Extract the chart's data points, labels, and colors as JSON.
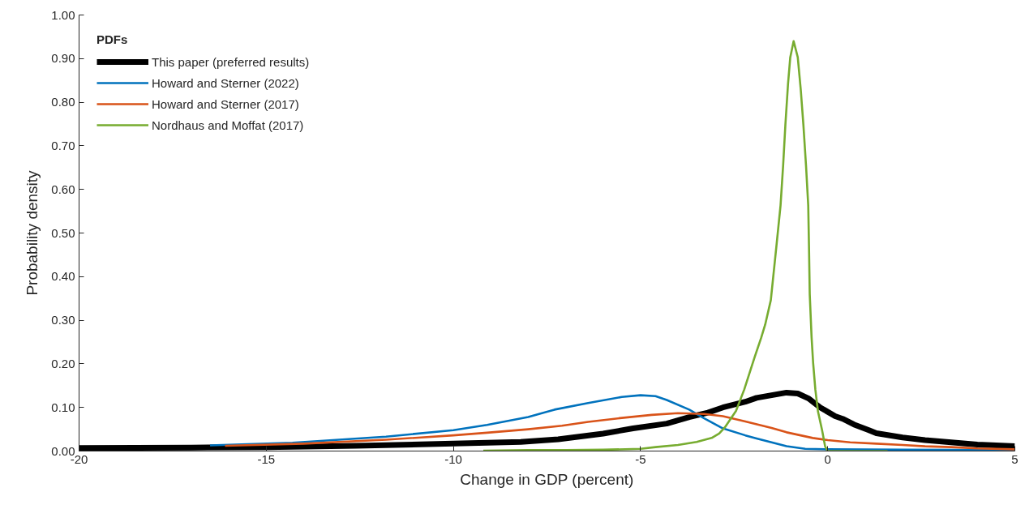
{
  "chart_data": {
    "type": "line",
    "xlabel": "Change in GDP (percent)",
    "ylabel": "Probability density",
    "legend_title": "PDFs",
    "legend": "top left",
    "line_style": "solid",
    "xlim": [
      -20,
      5
    ],
    "ylim": [
      0,
      1
    ],
    "xticks": [
      -20,
      -15,
      -10,
      -5,
      0,
      5
    ],
    "yticks": [
      {
        "value": 0,
        "label": "0.00"
      },
      {
        "value": 0.1,
        "label": "0.10"
      },
      {
        "value": 0.2,
        "label": "0.20"
      },
      {
        "value": 0.3,
        "label": "0.30"
      },
      {
        "value": 0.4,
        "label": "0.40"
      },
      {
        "value": 0.5,
        "label": "0.50"
      },
      {
        "value": 0.6,
        "label": "0.60"
      },
      {
        "value": 0.7,
        "label": "0.70"
      },
      {
        "value": 0.8,
        "label": "0.80"
      },
      {
        "value": 0.9,
        "label": "0.90"
      },
      {
        "value": 1,
        "label": "1.00"
      }
    ],
    "series": [
      {
        "name": "This paper (preferred results)",
        "color": "#000000",
        "x": [
          -20,
          -17,
          -15,
          -12.6,
          -10,
          -8.2,
          -7.2,
          -6,
          -5.2,
          -4.3,
          -3.7,
          -3.2,
          -2.8,
          -2.2,
          -1.9,
          -1.5,
          -1.1,
          -0.8,
          -0.5,
          -0.2,
          0.2,
          0.4,
          0.7,
          1.1,
          1.3,
          2,
          2.6,
          3.3,
          4,
          5
        ],
        "values": [
          0.007,
          0.008,
          0.009,
          0.012,
          0.017,
          0.021,
          0.027,
          0.04,
          0.052,
          0.063,
          0.078,
          0.088,
          0.1,
          0.113,
          0.122,
          0.128,
          0.134,
          0.132,
          0.12,
          0.1,
          0.08,
          0.074,
          0.061,
          0.048,
          0.041,
          0.031,
          0.025,
          0.02,
          0.015,
          0.011
        ]
      },
      {
        "name": "Howard and Sterner (2022)",
        "color": "#0072bd",
        "x": [
          -16.5,
          -14.3,
          -11.8,
          -10,
          -9.1,
          -8,
          -7.3,
          -6.4,
          -5.5,
          -5,
          -4.6,
          -4.3,
          -3.7,
          -3.3,
          -2.8,
          -2.2,
          -1.9,
          -1.5,
          -1.1,
          -0.6,
          0,
          2,
          5
        ],
        "values": [
          0.013,
          0.019,
          0.033,
          0.048,
          0.06,
          0.078,
          0.095,
          0.11,
          0.124,
          0.128,
          0.126,
          0.117,
          0.095,
          0.075,
          0.052,
          0.036,
          0.029,
          0.02,
          0.011,
          0.005,
          0.004,
          0.003,
          0.002
        ]
      },
      {
        "name": "Howard and Sterner (2017)",
        "color": "#d95319",
        "x": [
          -16.1,
          -14,
          -11.8,
          -10,
          -9.1,
          -8,
          -7.1,
          -6.4,
          -5.5,
          -4.7,
          -4,
          -3.3,
          -2.8,
          -2.2,
          -1.5,
          -1.1,
          -0.4,
          0,
          0.6,
          1.3,
          2,
          2.6,
          3.3,
          4,
          5
        ],
        "values": [
          0.012,
          0.017,
          0.026,
          0.036,
          0.042,
          0.05,
          0.058,
          0.067,
          0.076,
          0.083,
          0.087,
          0.085,
          0.08,
          0.068,
          0.053,
          0.043,
          0.03,
          0.025,
          0.02,
          0.017,
          0.014,
          0.011,
          0.009,
          0.006,
          0.004
        ]
      },
      {
        "name": "Nordhaus and Moffat (2017)",
        "color": "#77ac30",
        "x": [
          -9.2,
          -8,
          -7,
          -6,
          -5,
          -4.6,
          -4,
          -3.5,
          -3.1,
          -2.9,
          -2.75,
          -2.45,
          -2.23,
          -1.95,
          -1.78,
          -1.67,
          -1.52,
          -1.37,
          -1.26,
          -1.19,
          -1.13,
          -1.06,
          -1,
          -0.91,
          -0.8,
          -0.72,
          -0.65,
          -0.58,
          -0.52,
          -0.5,
          -0.48,
          -0.43,
          -0.39,
          -0.33,
          -0.26,
          -0.15,
          -0.07,
          0,
          1.6
        ],
        "values": [
          0.001,
          0.002,
          0.002,
          0.003,
          0.005,
          0.009,
          0.014,
          0.021,
          0.03,
          0.04,
          0.054,
          0.092,
          0.141,
          0.216,
          0.259,
          0.29,
          0.346,
          0.47,
          0.563,
          0.656,
          0.749,
          0.842,
          0.903,
          0.94,
          0.903,
          0.829,
          0.749,
          0.656,
          0.563,
          0.47,
          0.36,
          0.26,
          0.203,
          0.141,
          0.091,
          0.048,
          0.011,
          0,
          0
        ]
      }
    ]
  }
}
